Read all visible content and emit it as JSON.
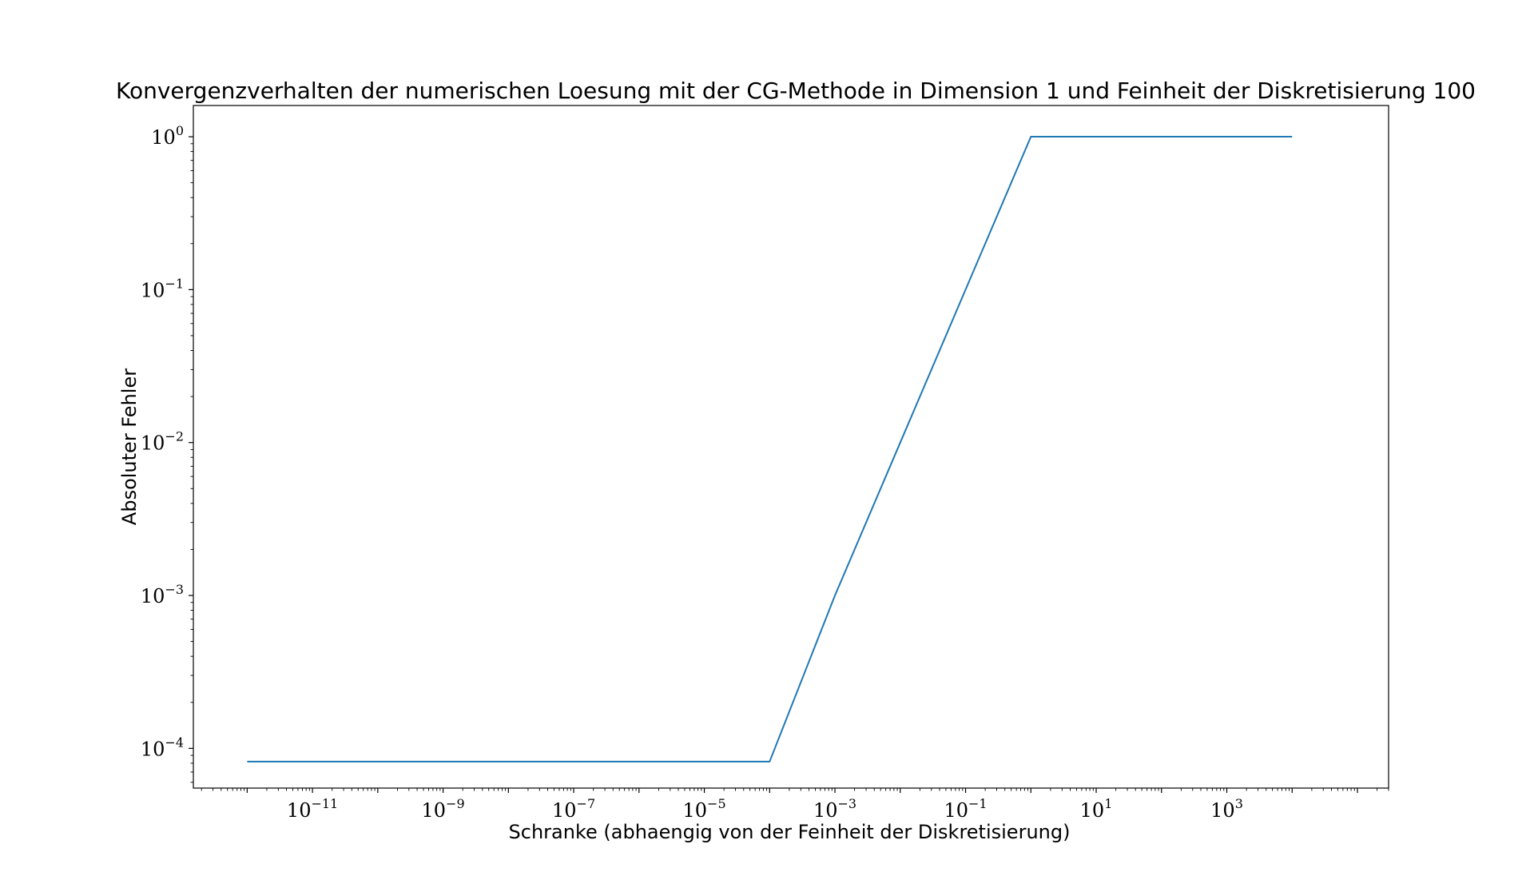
{
  "chart_data": {
    "type": "line",
    "title": "Konvergenzverhalten der numerischen Loesung mit der CG-Methode in Dimension 1 und Feinheit der Diskretisierung 100",
    "xlabel": "Schranke (abhaengig von der Feinheit der Diskretisierung)",
    "ylabel": "Absoluter Fehler",
    "xscale": "log",
    "yscale": "log",
    "xlim": [
      1.5e-13,
      300000.0
    ],
    "ylim": [
      5.5e-05,
      1.6
    ],
    "xticks": [
      1e-11,
      1e-09,
      1e-07,
      1e-05,
      0.001,
      0.1,
      10.0,
      1000.0
    ],
    "xtick_labels": [
      {
        "base": "10",
        "exp": "−11"
      },
      {
        "base": "10",
        "exp": "−9"
      },
      {
        "base": "10",
        "exp": "−7"
      },
      {
        "base": "10",
        "exp": "−5"
      },
      {
        "base": "10",
        "exp": "−3"
      },
      {
        "base": "10",
        "exp": "−1"
      },
      {
        "base": "10",
        "exp": "1"
      },
      {
        "base": "10",
        "exp": "3"
      }
    ],
    "yticks": [
      0.0001,
      0.001,
      0.01,
      0.1,
      1
    ],
    "ytick_labels": [
      {
        "base": "10",
        "exp": "−4"
      },
      {
        "base": "10",
        "exp": "−3"
      },
      {
        "base": "10",
        "exp": "−2"
      },
      {
        "base": "10",
        "exp": "−1"
      },
      {
        "base": "10",
        "exp": "0"
      }
    ],
    "grid": false,
    "series": [
      {
        "color": "#1f77b4",
        "x": [
          1e-12,
          1e-11,
          1e-10,
          1e-09,
          1e-08,
          1e-07,
          1e-06,
          1e-05,
          0.0001,
          0.001,
          0.01,
          0.1,
          1,
          10,
          100,
          1000,
          10000
        ],
        "y": [
          8.2e-05,
          8.2e-05,
          8.2e-05,
          8.2e-05,
          8.2e-05,
          8.2e-05,
          8.2e-05,
          8.2e-05,
          8.2e-05,
          0.001,
          0.01,
          0.1,
          1,
          1,
          1,
          1,
          1
        ]
      }
    ]
  }
}
